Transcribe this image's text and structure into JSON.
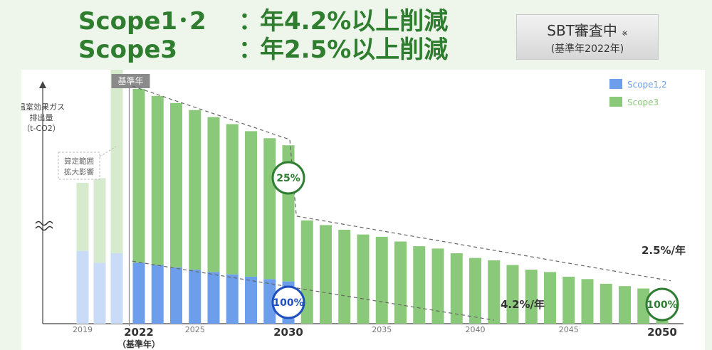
{
  "headline": {
    "line1": {
      "scope": "Scope1･2",
      "colon": "：",
      "target": "年4.2%以上削減"
    },
    "line2": {
      "scope": "Scope3",
      "colon": "：",
      "target": "年2.5%以上削減"
    }
  },
  "sbt_box": {
    "title": "SBT審査中",
    "mark": "※",
    "subtitle": "(基準年2022年)"
  },
  "chart_data": {
    "type": "bar",
    "stacked": true,
    "ylabel_lines": [
      "温室効果ガス",
      "排出量",
      "（t-CO2）"
    ],
    "y_axis_break": true,
    "units": "percent of base-year (2022) total emissions, estimated",
    "categories": [
      "2019",
      "2020",
      "2021",
      "2022",
      "2023",
      "2024",
      "2025",
      "2026",
      "2027",
      "2028",
      "2029",
      "2030",
      "2031",
      "2032",
      "2033",
      "2034",
      "2035",
      "2036",
      "2037",
      "2038",
      "2039",
      "2040",
      "2041",
      "2042",
      "2043",
      "2044",
      "2045",
      "2046",
      "2047",
      "2048",
      "2049",
      "2050"
    ],
    "x_tick_labels": [
      {
        "year": "2019",
        "text": "2019",
        "style": "small"
      },
      {
        "year": "2022",
        "text": "2022",
        "style": "bold",
        "sub": "（基準年）"
      },
      {
        "year": "2025",
        "text": "2025",
        "style": "small"
      },
      {
        "year": "2030",
        "text": "2030",
        "style": "bold"
      },
      {
        "year": "2035",
        "text": "2035",
        "style": "small"
      },
      {
        "year": "2040",
        "text": "2040",
        "style": "small"
      },
      {
        "year": "2045",
        "text": "2045",
        "style": "small"
      },
      {
        "year": "2050",
        "text": "2050",
        "style": "bold"
      }
    ],
    "series": [
      {
        "name": "Scope1,2",
        "color": "#6d9eeb",
        "values": [
          31,
          26,
          30,
          26,
          25,
          24,
          23,
          22,
          21,
          20,
          19,
          18,
          0,
          0,
          0,
          0,
          0,
          0,
          0,
          0,
          0,
          0,
          0,
          0,
          0,
          0,
          0,
          0,
          0,
          0,
          0,
          0
        ]
      },
      {
        "name": "Scope3",
        "color": "#8bc97a",
        "values": [
          29,
          36,
          79,
          74,
          72,
          70,
          68,
          66,
          64,
          62,
          60,
          58,
          44,
          42,
          40,
          38,
          37,
          35,
          33,
          32,
          30,
          28,
          27,
          25,
          23,
          22,
          20,
          19,
          17,
          16,
          15,
          14
        ]
      }
    ],
    "faded_years": [
      "2019",
      "2020",
      "2021"
    ],
    "faded_colors": {
      "Scope1,2": "#c9dbf6",
      "Scope3": "#d6eacd"
    },
    "base_year_label": "基準年",
    "scope_change_note": [
      "算定範囲",
      "拡大影響"
    ],
    "trend_labels": {
      "scope3": "2.5%/年",
      "scope12": "4.2%/年"
    },
    "milestones": [
      {
        "year": "2030",
        "text": "25%",
        "color": "#2e7d32"
      },
      {
        "year": "2030",
        "text": "100%",
        "color": "#1f4fbf"
      },
      {
        "year": "2050",
        "text": "100%",
        "color": "#2e7d32"
      }
    ],
    "legend_position": "top-right",
    "grid": false
  }
}
